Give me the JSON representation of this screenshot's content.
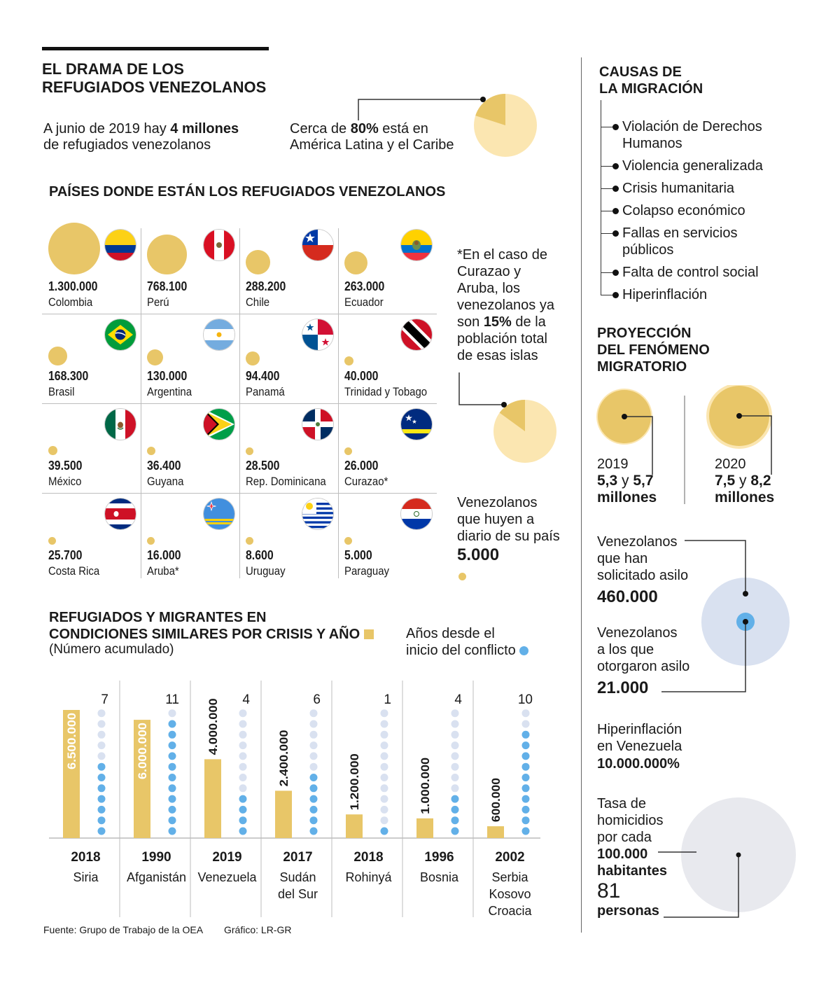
{
  "header": {
    "title_line1": "EL DRAMA DE LOS",
    "title_line2": "REFUGIADOS VENEZOLANOS",
    "intro_pre": "A junio de 2019 hay ",
    "intro_bold": "4 millones",
    "intro_post": "de refugiados venezolanos",
    "share_pre": "Cerca de ",
    "share_bold": "80%",
    "share_mid": " está en",
    "share_post": "América Latina y el Caribe",
    "share_value": 80
  },
  "countries": {
    "title": "PAÍSES DONDE ESTÁN LOS REFUGIADOS VENEZOLANOS",
    "items": [
      {
        "value": "1.300.000",
        "name": "Colombia",
        "n": 1300000
      },
      {
        "value": "768.100",
        "name": "Perú",
        "n": 768100
      },
      {
        "value": "288.200",
        "name": "Chile",
        "n": 288200
      },
      {
        "value": "263.000",
        "name": "Ecuador",
        "n": 263000
      },
      {
        "value": "168.300",
        "name": "Brasil",
        "n": 168300
      },
      {
        "value": "130.000",
        "name": "Argentina",
        "n": 130000
      },
      {
        "value": "94.400",
        "name": "Panamá",
        "n": 94400
      },
      {
        "value": "40.000",
        "name": "Trinidad y Tobago",
        "n": 40000
      },
      {
        "value": "39.500",
        "name": "México",
        "n": 39500
      },
      {
        "value": "36.400",
        "name": "Guyana",
        "n": 36400
      },
      {
        "value": "28.500",
        "name": "Rep. Dominicana",
        "n": 28500
      },
      {
        "value": "26.000",
        "name": "Curazao*",
        "n": 26000
      },
      {
        "value": "25.700",
        "name": "Costa Rica",
        "n": 25700
      },
      {
        "value": "16.000",
        "name": "Aruba*",
        "n": 16000
      },
      {
        "value": "8.600",
        "name": "Uruguay",
        "n": 8600
      },
      {
        "value": "5.000",
        "name": "Paraguay",
        "n": 5000
      }
    ],
    "note_lines": [
      "*En el caso de",
      "Curazao y",
      "Aruba, los",
      "venezolanos ya"
    ],
    "note_pre": "son ",
    "note_bold": "15%",
    "note_post": " de la",
    "note_lines2": [
      "población total",
      "de esas islas"
    ],
    "note_value": 15,
    "daily_lines": [
      "Venezolanos",
      "que huyen a",
      "diario de su país"
    ],
    "daily_value": "5.000"
  },
  "colors": {
    "gold": "#e8c668",
    "pale_gold": "#fbe6b1",
    "blue": "#62b0e8",
    "pale_blue": "#d9e1f0",
    "gray": "#e8e9ee"
  },
  "crisis": {
    "title_line1": "REFUGIADOS Y MIGRANTES EN",
    "title_line2": "CONDICIONES SIMILARES POR CRISIS Y AÑO",
    "subtitle": "(Número acumulado)",
    "legend_line1": "Años desde el",
    "legend_line2": "inicio del conflicto"
  },
  "chart_data": {
    "type": "bar",
    "title": "REFUGIADOS Y MIGRANTES EN CONDICIONES SIMILARES POR CRISIS Y AÑO",
    "subtitle": "(Número acumulado)",
    "categories": [
      "Siria",
      "Afganistán",
      "Venezuela",
      "Sudán del Sur",
      "Rohinyá",
      "Bosnia",
      "Serbia Kosovo Croacia"
    ],
    "category_lines": [
      [
        "Siria"
      ],
      [
        "Afganistán"
      ],
      [
        "Venezuela"
      ],
      [
        "Sudán",
        "del Sur"
      ],
      [
        "Rohinyá"
      ],
      [
        "Bosnia"
      ],
      [
        "Serbia",
        "Kosovo",
        "Croacia"
      ]
    ],
    "years": [
      "2018",
      "1990",
      "2019",
      "2017",
      "2018",
      "1996",
      "2002"
    ],
    "series": [
      {
        "name": "Refugiados y migrantes",
        "values": [
          6500000,
          6000000,
          4000000,
          2400000,
          1200000,
          1000000,
          600000
        ],
        "labels": [
          "6.500.000",
          "6.000.000",
          "4.000.000",
          "2.400.000",
          "1.200.000",
          "1.000.000",
          "600.000"
        ]
      },
      {
        "name": "Años desde el inicio del conflicto",
        "values": [
          7,
          11,
          4,
          6,
          1,
          4,
          10
        ],
        "labels": [
          "7",
          "11",
          "4",
          "6",
          "1",
          "4",
          "10"
        ]
      }
    ],
    "ylim": [
      0,
      6500000
    ],
    "xlabel": "",
    "ylabel": ""
  },
  "causes": {
    "title_line1": "CAUSAS DE",
    "title_line2": "LA MIGRACIÓN",
    "items": [
      [
        "Violación de Derechos",
        "Humanos"
      ],
      [
        "Violencia generalizada"
      ],
      [
        "Crisis humanitaria"
      ],
      [
        "Colapso económico"
      ],
      [
        "Fallas en servicios",
        "públicos"
      ],
      [
        "Falta de control social"
      ],
      [
        "Hiperinflación"
      ]
    ]
  },
  "projection": {
    "title_line1": "PROYECCIÓN",
    "title_line2": "DEL FENÓMENO",
    "title_line3": "MIGRATORIO",
    "y2019": {
      "year": "2019",
      "low": "5,3",
      "and": " y ",
      "high": "5,7",
      "unit": "millones"
    },
    "y2020": {
      "year": "2020",
      "low": "7,5",
      "and": " y ",
      "high": "8,2",
      "unit": "millones"
    }
  },
  "asylum": {
    "requested_lines": [
      "Venezolanos",
      "que han",
      "solicitado asilo"
    ],
    "requested_value": "460.000",
    "granted_lines": [
      "Venezolanos",
      "a los que",
      "otorgaron asilo"
    ],
    "granted_value": "21.000"
  },
  "hyperinflation": {
    "lines": [
      "Hiperinflación",
      "en Venezuela"
    ],
    "value": "10.000.000%"
  },
  "homicide": {
    "lines": [
      "Tasa de",
      "homicidios",
      "por cada"
    ],
    "bold1": "100.000",
    "bold2": "habitantes",
    "value": "81",
    "unit": "personas"
  },
  "footer": {
    "source": "Fuente: Grupo de Trabajo de la OEA",
    "credit": "Gráfico: LR-GR"
  }
}
